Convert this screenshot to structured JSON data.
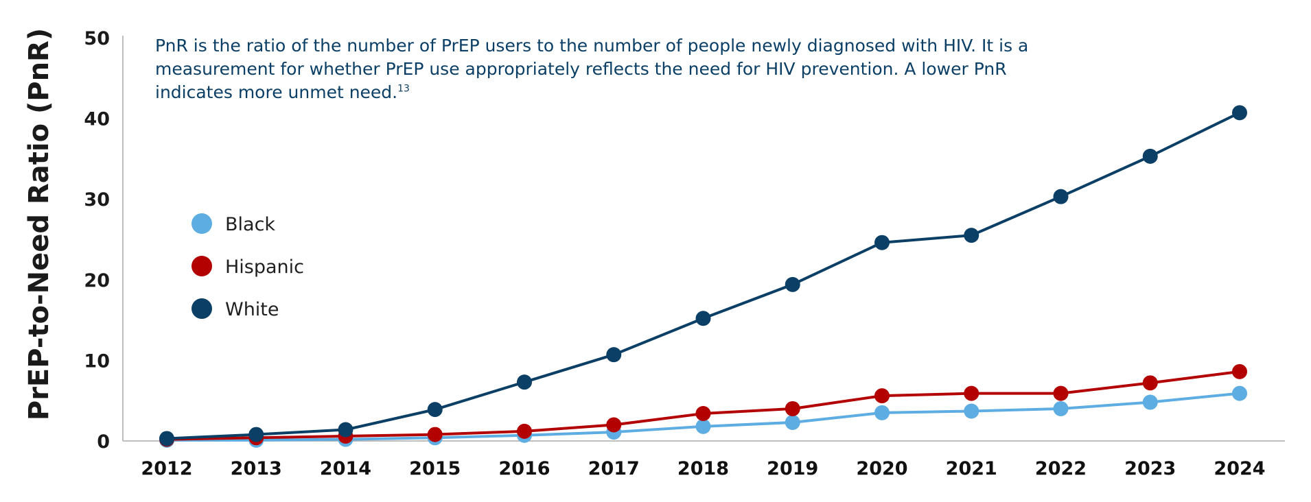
{
  "note": {
    "text": "PnR is the ratio of the number of PrEP users to the number of people newly diagnosed with HIV. It is a measurement for whether PrEP use appropriately reflects the need for HIV prevention. A lower PnR indicates more unmet need.",
    "footnote": "13"
  },
  "colors": {
    "black": "#5DADE2",
    "hispanic": "#B30000",
    "hispanic_marker_alt": "#C41E3A",
    "white": "#0B3F66",
    "axis": "#AAAAAA",
    "text": "#1A1A1A"
  },
  "chart_data": {
    "type": "line",
    "title": "",
    "xlabel": "",
    "ylabel": "PrEP-to-Need Ratio (PnR)",
    "ylim": [
      0,
      50
    ],
    "yticks": [
      0,
      10,
      20,
      30,
      40,
      50
    ],
    "grid": false,
    "legend_position": "upper-left inside plot",
    "annotation": "PnR is the ratio of the number of PrEP users to the number of people newly diagnosed with HIV. It is a measurement for whether PrEP use appropriately reflects the need for HIV prevention. A lower PnR indicates more unmet need.13",
    "categories": [
      "2012",
      "2013",
      "2014",
      "2015",
      "2016",
      "2017",
      "2018",
      "2019",
      "2020",
      "2021",
      "2022",
      "2023",
      "2024"
    ],
    "series": [
      {
        "name": "Black",
        "color": "#5DADE2",
        "values": [
          0.1,
          0.1,
          0.2,
          0.4,
          0.7,
          1.1,
          1.8,
          2.3,
          3.5,
          3.7,
          4.0,
          4.8,
          5.9
        ]
      },
      {
        "name": "Hispanic",
        "color": "#B30000",
        "values": [
          0.2,
          0.4,
          0.6,
          0.8,
          1.2,
          2.0,
          3.4,
          4.0,
          5.6,
          5.9,
          5.9,
          7.2,
          8.6
        ]
      },
      {
        "name": "White",
        "color": "#0B3F66",
        "values": [
          0.3,
          0.8,
          1.4,
          3.9,
          7.3,
          10.7,
          15.2,
          19.4,
          24.6,
          25.5,
          30.3,
          35.3,
          40.7
        ]
      }
    ]
  }
}
